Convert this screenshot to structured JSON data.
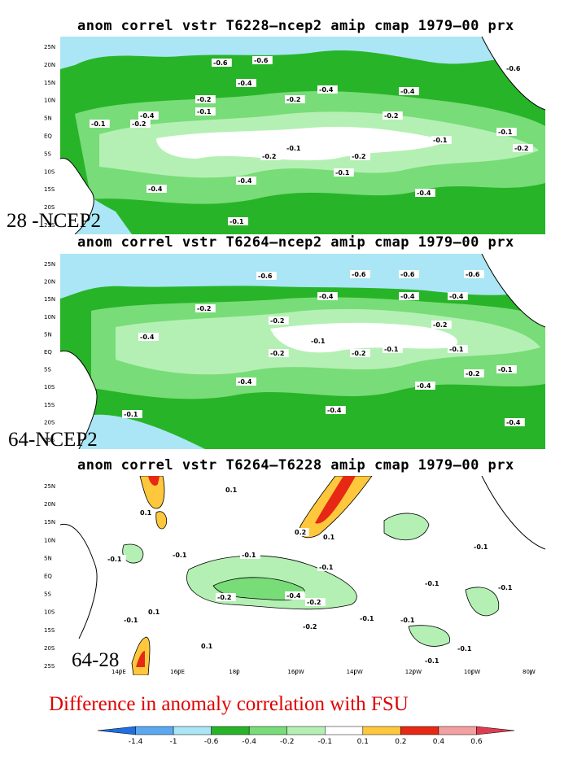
{
  "panels": [
    {
      "title": "anom correl vstr T6228–ncep2 amip cmap 1979–00 prx",
      "label": "28 -NCEP2",
      "contour_labels": [
        "-0.6",
        "-0.6",
        "-0.6",
        "-0.4",
        "-0.4",
        "-0.4",
        "-0.4",
        "-0.4",
        "-0.4",
        "-0.4",
        "-0.2",
        "-0.2",
        "-0.2",
        "-0.2",
        "-0.2",
        "-0.2",
        "-0.2",
        "-0.1",
        "-0.1",
        "-0.1",
        "-0.1",
        "-0.1",
        "-0.1",
        "-0.1"
      ]
    },
    {
      "title": "anom correl vstr T6264–ncep2 amip cmap 1979–00 prx",
      "label": "64-NCEP2",
      "contour_labels": [
        "-0.6",
        "-0.6",
        "-0.6",
        "-0.6",
        "-0.4",
        "-0.4",
        "-0.4",
        "-0.4",
        "-0.4",
        "-0.4",
        "-0.4",
        "-0.4",
        "-0.2",
        "-0.2",
        "-0.2",
        "-0.2",
        "-0.2",
        "-0.2",
        "-0.1",
        "-0.1",
        "-0.1",
        "-0.1",
        "-0.1"
      ]
    },
    {
      "title": "anom correl vstr T6264–T6228 amip cmap 1979–00 prx",
      "label": "64-28",
      "contour_labels": [
        "0.1",
        "0.1",
        "0.2",
        "0.1",
        "-0.1",
        "-0.1",
        "-0.1",
        "-0.1",
        "-0.1",
        "-0.1",
        "-0.1",
        "-0.2",
        "-0.2",
        "-0.4",
        "-0.2",
        "-0.1",
        "-0.1",
        "-0.1",
        "0.1",
        "0.1",
        "-0.1",
        "-0.1"
      ]
    }
  ],
  "lat_ticks": [
    "25N",
    "20N",
    "15N",
    "10N",
    "5N",
    "EQ",
    "5S",
    "10S",
    "15S",
    "20S",
    "25S"
  ],
  "lon_ticks": [
    "140E",
    "160E",
    "180",
    "160W",
    "140W",
    "120W",
    "100W",
    "80W"
  ],
  "caption": "Difference in anomaly correlation with FSU",
  "colorbar": {
    "levels": [
      "-1.4",
      "-1",
      "-0.6",
      "-0.4",
      "-0.2",
      "-0.1",
      "0.1",
      "0.2",
      "0.4",
      "0.6"
    ],
    "colors": [
      "#1e6fe0",
      "#5aa8f0",
      "#aae6f5",
      "#28b428",
      "#78dc78",
      "#b4f0b4",
      "#ffffff",
      "#ffc83c",
      "#e62814",
      "#f5a0a0",
      "#e03c50"
    ]
  },
  "palette": {
    "land": "#ffffff",
    "coast": "#000000"
  }
}
